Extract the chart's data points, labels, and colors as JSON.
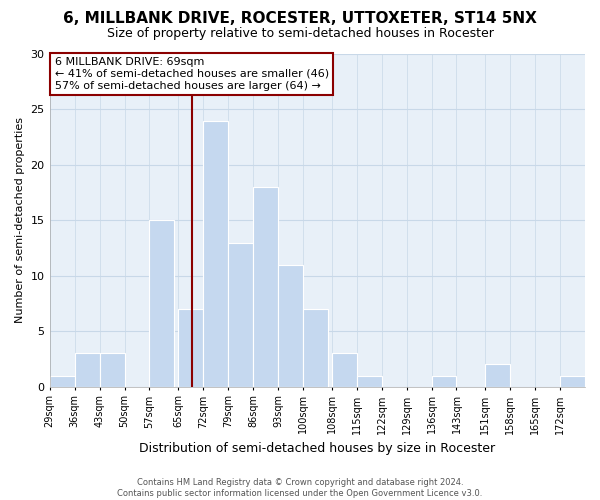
{
  "title": "6, MILLBANK DRIVE, ROCESTER, UTTOXETER, ST14 5NX",
  "subtitle": "Size of property relative to semi-detached houses in Rocester",
  "xlabel": "Distribution of semi-detached houses by size in Rocester",
  "ylabel": "Number of semi-detached properties",
  "footer_line1": "Contains HM Land Registry data © Crown copyright and database right 2024.",
  "footer_line2": "Contains public sector information licensed under the Open Government Licence v3.0.",
  "bin_labels": [
    "29sqm",
    "36sqm",
    "43sqm",
    "50sqm",
    "57sqm",
    "65sqm",
    "72sqm",
    "79sqm",
    "86sqm",
    "93sqm",
    "100sqm",
    "108sqm",
    "115sqm",
    "122sqm",
    "129sqm",
    "136sqm",
    "143sqm",
    "151sqm",
    "158sqm",
    "165sqm",
    "172sqm"
  ],
  "bin_edges": [
    29,
    36,
    43,
    50,
    57,
    65,
    72,
    79,
    86,
    93,
    100,
    108,
    115,
    122,
    129,
    136,
    143,
    151,
    158,
    165,
    172
  ],
  "bin_width": 7,
  "counts": [
    1,
    3,
    3,
    0,
    15,
    7,
    24,
    13,
    18,
    11,
    7,
    3,
    1,
    0,
    0,
    1,
    0,
    2,
    0,
    0,
    1
  ],
  "property_size": 69,
  "bar_color": "#c5d8ef",
  "bar_edge_color": "#ffffff",
  "vline_color": "#8b0000",
  "vline_x": 69,
  "annotation_text_line1": "6 MILLBANK DRIVE: 69sqm",
  "annotation_text_line2": "← 41% of semi-detached houses are smaller (46)",
  "annotation_text_line3": "57% of semi-detached houses are larger (64) →",
  "annotation_box_color": "#ffffff",
  "annotation_box_edge": "#8b0000",
  "ylim": [
    0,
    30
  ],
  "xlim": [
    29,
    179
  ],
  "yticks": [
    0,
    5,
    10,
    15,
    20,
    25,
    30
  ],
  "background_color": "#ffffff",
  "plot_bg_color": "#e8f0f8",
  "grid_color": "#c8d8e8"
}
